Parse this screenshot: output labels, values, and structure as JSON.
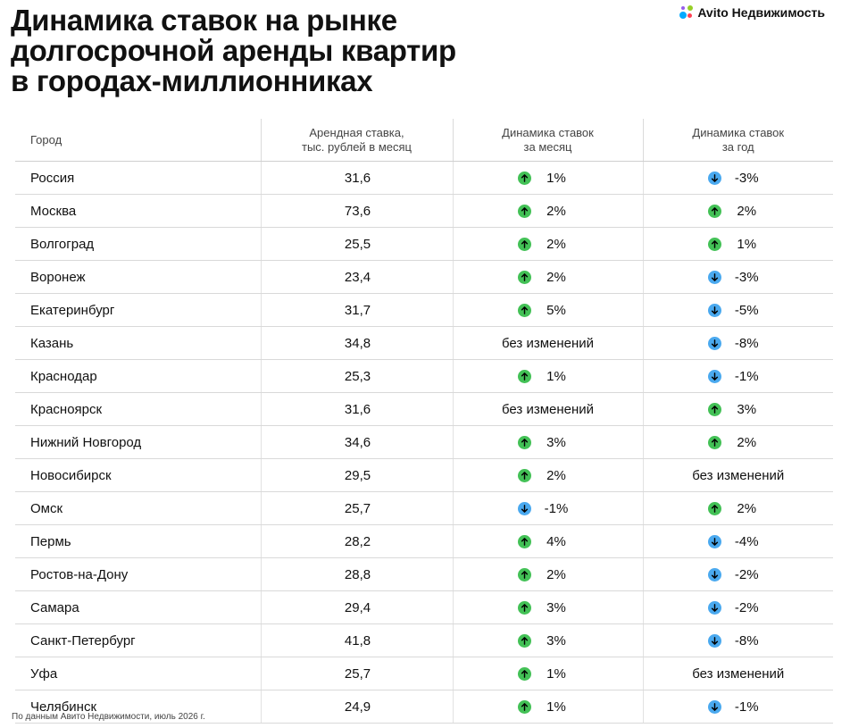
{
  "header": {
    "title_lines": [
      "Динамика ставок на рынке",
      "долгосрочной аренды квартир",
      "в городах-миллионниках"
    ],
    "logo": {
      "icon": "avito-dots-icon",
      "text": "Avito Недвижимость"
    }
  },
  "table": {
    "columns": [
      {
        "lines": [
          "Город"
        ]
      },
      {
        "lines": [
          "Арендная ставка,",
          "тыс. рублей в месяц"
        ]
      },
      {
        "lines": [
          "Динамика ставок",
          "за месяц"
        ]
      },
      {
        "lines": [
          "Динамика ставок",
          "за год"
        ]
      }
    ],
    "no_change_label": "без изменений",
    "rows": [
      {
        "city": "Россия",
        "rate": "31,6",
        "month": {
          "dir": "up",
          "value": "1%"
        },
        "year": {
          "dir": "down",
          "value": "-3%"
        }
      },
      {
        "city": "Москва",
        "rate": "73,6",
        "month": {
          "dir": "up",
          "value": "2%"
        },
        "year": {
          "dir": "up",
          "value": "2%"
        }
      },
      {
        "city": "Волгоград",
        "rate": "25,5",
        "month": {
          "dir": "up",
          "value": "2%"
        },
        "year": {
          "dir": "up",
          "value": "1%"
        }
      },
      {
        "city": "Воронеж",
        "rate": "23,4",
        "month": {
          "dir": "up",
          "value": "2%"
        },
        "year": {
          "dir": "down",
          "value": "-3%"
        }
      },
      {
        "city": "Екатеринбург",
        "rate": "31,7",
        "month": {
          "dir": "up",
          "value": "5%"
        },
        "year": {
          "dir": "down",
          "value": "-5%"
        }
      },
      {
        "city": "Казань",
        "rate": "34,8",
        "month": {
          "dir": "none",
          "value": "без изменений"
        },
        "year": {
          "dir": "down",
          "value": "-8%"
        }
      },
      {
        "city": "Краснодар",
        "rate": "25,3",
        "month": {
          "dir": "up",
          "value": "1%"
        },
        "year": {
          "dir": "down",
          "value": "-1%"
        }
      },
      {
        "city": "Красноярск",
        "rate": "31,6",
        "month": {
          "dir": "none",
          "value": "без изменений"
        },
        "year": {
          "dir": "up",
          "value": "3%"
        }
      },
      {
        "city": "Нижний Новгород",
        "rate": "34,6",
        "month": {
          "dir": "up",
          "value": "3%"
        },
        "year": {
          "dir": "up",
          "value": "2%"
        }
      },
      {
        "city": "Новосибирск",
        "rate": "29,5",
        "month": {
          "dir": "up",
          "value": "2%"
        },
        "year": {
          "dir": "none",
          "value": "без изменений"
        }
      },
      {
        "city": "Омск",
        "rate": "25,7",
        "month": {
          "dir": "down",
          "value": "-1%"
        },
        "year": {
          "dir": "up",
          "value": "2%"
        }
      },
      {
        "city": "Пермь",
        "rate": "28,2",
        "month": {
          "dir": "up",
          "value": "4%"
        },
        "year": {
          "dir": "down",
          "value": "-4%"
        }
      },
      {
        "city": "Ростов-на-Дону",
        "rate": "28,8",
        "month": {
          "dir": "up",
          "value": "2%"
        },
        "year": {
          "dir": "down",
          "value": "-2%"
        }
      },
      {
        "city": "Самара",
        "rate": "29,4",
        "month": {
          "dir": "up",
          "value": "3%"
        },
        "year": {
          "dir": "down",
          "value": "-2%"
        }
      },
      {
        "city": "Санкт-Петербург",
        "rate": "41,8",
        "month": {
          "dir": "up",
          "value": "3%"
        },
        "year": {
          "dir": "down",
          "value": "-8%"
        }
      },
      {
        "city": "Уфа",
        "rate": "25,7",
        "month": {
          "dir": "up",
          "value": "1%"
        },
        "year": {
          "dir": "none",
          "value": "без изменений"
        }
      },
      {
        "city": "Челябинск",
        "rate": "24,9",
        "month": {
          "dir": "up",
          "value": "1%"
        },
        "year": {
          "dir": "down",
          "value": "-1%"
        }
      }
    ]
  },
  "colors": {
    "up": "#43c156",
    "down": "#4aa9ef",
    "text": "#111111",
    "grid": "#d9d9d9"
  },
  "footnote": "По данным Авито Недвижимости, июль 2026 г."
}
